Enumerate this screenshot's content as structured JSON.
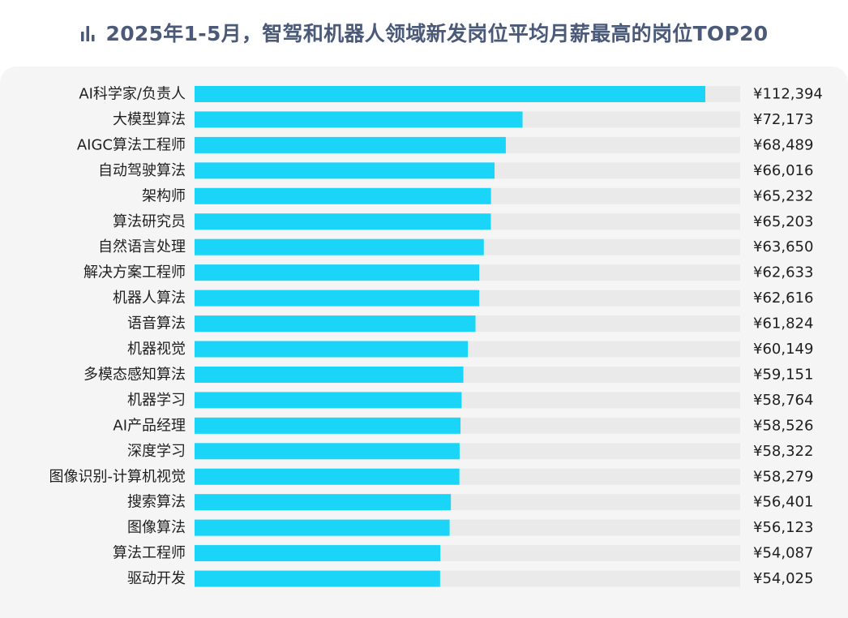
{
  "header": {
    "icon": "bar-chart-icon",
    "title": "2025年1-5月，智驾和机器人领域新发岗位平均月薪最高的岗位TOP20"
  },
  "colors": {
    "bar": "#1ad5f8",
    "track": "#eaeaea",
    "title": "#4a5a78",
    "panel": "#f5f5f5"
  },
  "chart_data": {
    "type": "bar",
    "orientation": "horizontal",
    "title": "2025年1-5月，智驾和机器人领域新发岗位平均月薪最高的岗位TOP20",
    "value_prefix": "¥",
    "grid": false,
    "legend": "none",
    "categories": [
      "AI科学家/负责人",
      "大模型算法",
      "AIGC算法工程师",
      "自动驾驶算法",
      "架构师",
      "算法研究员",
      "自然语言处理",
      "解决方案工程师",
      "机器人算法",
      "语音算法",
      "机器视觉",
      "多模态感知算法",
      "机器学习",
      "AI产品经理",
      "深度学习",
      "图像识别-计算机视觉",
      "搜索算法",
      "图像算法",
      "算法工程师",
      "驱动开发"
    ],
    "values": [
      112394,
      72173,
      68489,
      66016,
      65232,
      65203,
      63650,
      62633,
      62616,
      61824,
      60149,
      59151,
      58764,
      58526,
      58322,
      58279,
      56401,
      56123,
      54087,
      54025
    ],
    "value_labels": [
      "¥112,394",
      "¥72,173",
      "¥68,489",
      "¥66,016",
      "¥65,232",
      "¥65,203",
      "¥63,650",
      "¥62,633",
      "¥62,616",
      "¥61,824",
      "¥60,149",
      "¥59,151",
      "¥58,764",
      "¥58,526",
      "¥58,322",
      "¥58,279",
      "¥56,401",
      "¥56,123",
      "¥54,087",
      "¥54,025"
    ]
  }
}
